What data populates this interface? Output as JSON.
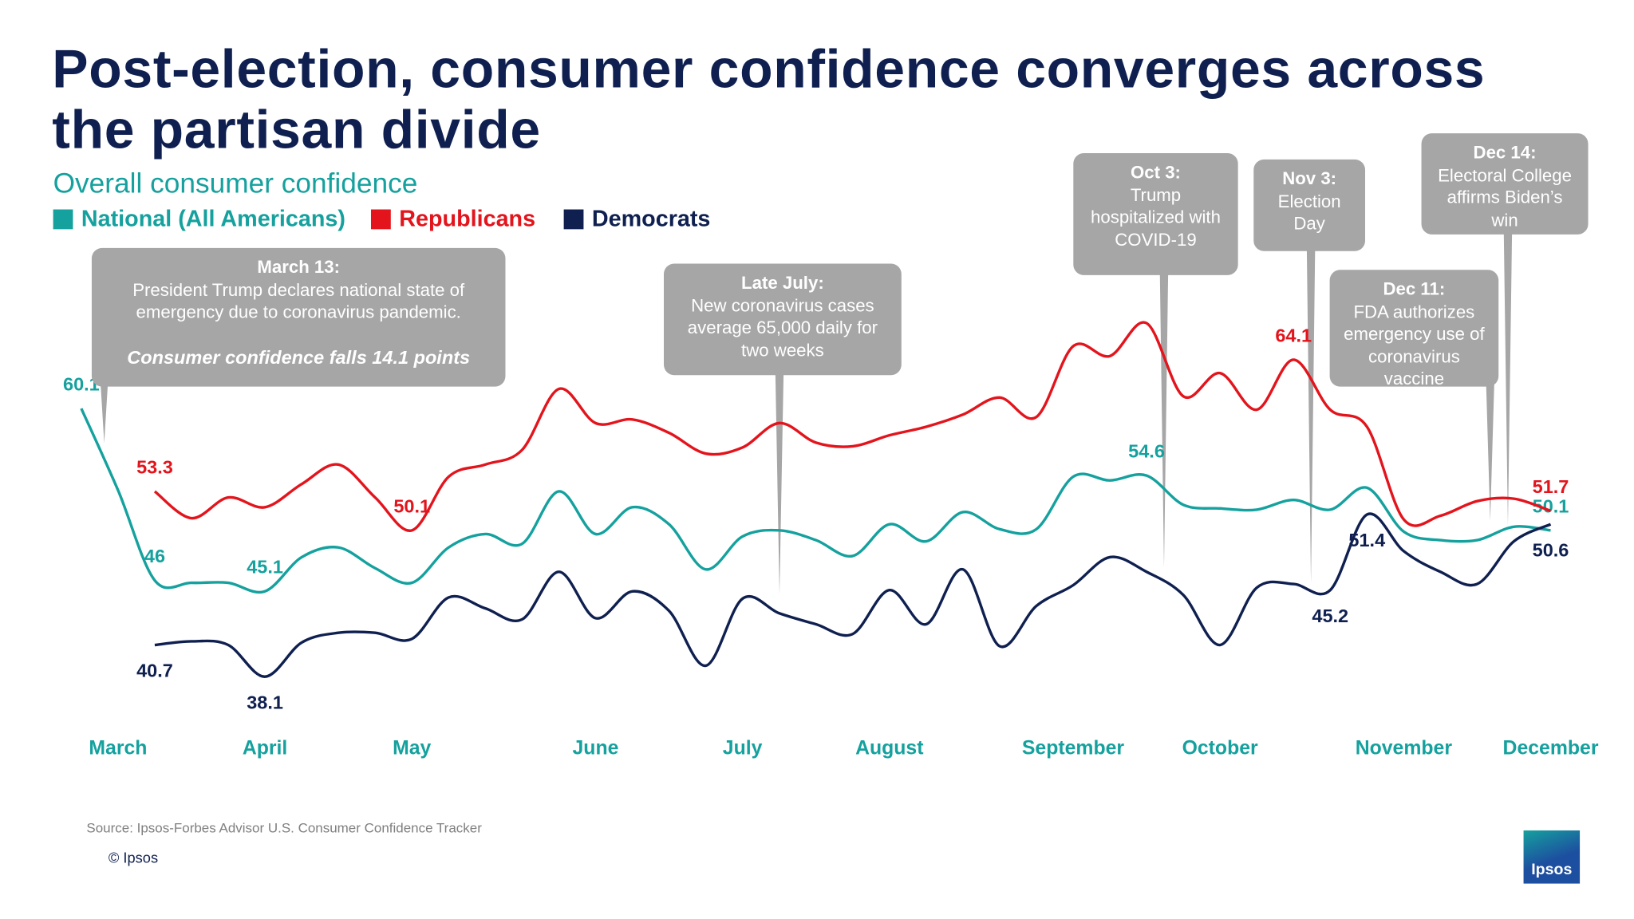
{
  "chart_data": {
    "type": "line",
    "title": "Post-election, consumer confidence converges across the partisan divide",
    "subtitle": "Overall consumer confidence",
    "categories": [
      null,
      "March",
      null,
      null,
      null,
      "April",
      null,
      null,
      null,
      "May",
      null,
      null,
      null,
      null,
      "June",
      null,
      null,
      null,
      "July",
      null,
      null,
      null,
      "August",
      null,
      null,
      null,
      null,
      "September",
      null,
      null,
      null,
      "October",
      null,
      null,
      null,
      null,
      "November",
      null,
      null,
      null,
      "December"
    ],
    "ylim": [
      32,
      70
    ],
    "series": [
      {
        "name": "National (All Americans)",
        "color": "#15a19e",
        "label_side": "above",
        "values": [
          60.1,
          53.4,
          46,
          45.8,
          45.8,
          45.1,
          47.9,
          48.7,
          47.0,
          45.8,
          48.7,
          49.8,
          49.0,
          53.3,
          49.8,
          52.0,
          50.6,
          46.9,
          49.6,
          50.1,
          49.3,
          48.0,
          50.6,
          49.2,
          51.6,
          50.2,
          50.2,
          54.5,
          54.2,
          54.6,
          52.2,
          51.9,
          51.8,
          52.6,
          51.8,
          53.6,
          50.0,
          49.3,
          49.3,
          50.4,
          50.1
        ],
        "value_labels": [
          "60.1",
          null,
          "46",
          null,
          null,
          "45.1",
          null,
          null,
          null,
          null,
          null,
          null,
          null,
          null,
          null,
          null,
          null,
          null,
          null,
          null,
          null,
          null,
          null,
          null,
          null,
          null,
          null,
          null,
          null,
          "54.6",
          null,
          null,
          null,
          null,
          null,
          null,
          null,
          null,
          null,
          null,
          "50.1"
        ]
      },
      {
        "name": "Republicans",
        "color": "#e3141c",
        "label_side": "above",
        "values": [
          null,
          null,
          53.3,
          51.1,
          52.8,
          52.0,
          53.9,
          55.5,
          52.8,
          50.1,
          54.5,
          55.5,
          56.7,
          61.7,
          58.9,
          59.2,
          58.1,
          56.4,
          56.9,
          58.9,
          57.3,
          57.0,
          57.9,
          58.6,
          59.6,
          61.0,
          59.4,
          65.2,
          64.4,
          67.1,
          61.1,
          63.0,
          60.0,
          64.1,
          60.0,
          58.6,
          51.0,
          51.3,
          52.5,
          52.7,
          51.7
        ],
        "value_labels": [
          null,
          null,
          "53.3",
          null,
          null,
          null,
          null,
          null,
          null,
          "50.1",
          null,
          null,
          null,
          null,
          null,
          null,
          null,
          null,
          null,
          null,
          null,
          null,
          null,
          null,
          null,
          null,
          null,
          null,
          null,
          null,
          null,
          null,
          null,
          "64.1",
          null,
          null,
          null,
          null,
          null,
          null,
          "51.7"
        ]
      },
      {
        "name": "Democrats",
        "color": "#0f2050",
        "label_side": "below",
        "values": [
          null,
          null,
          40.7,
          41.0,
          40.7,
          38.1,
          40.9,
          41.7,
          41.7,
          41.2,
          44.6,
          43.7,
          42.8,
          46.7,
          42.9,
          45.1,
          43.5,
          39.0,
          44.5,
          43.3,
          42.4,
          41.6,
          45.2,
          42.4,
          46.9,
          40.6,
          43.9,
          45.6,
          47.9,
          46.7,
          44.8,
          40.7,
          45.4,
          45.7,
          45.2,
          51.4,
          48.4,
          46.7,
          45.7,
          49.2,
          50.6
        ],
        "value_labels": [
          null,
          null,
          "40.7",
          null,
          null,
          "38.1",
          null,
          null,
          null,
          null,
          null,
          null,
          null,
          null,
          null,
          null,
          null,
          null,
          null,
          null,
          null,
          null,
          null,
          null,
          null,
          null,
          null,
          null,
          null,
          null,
          null,
          null,
          null,
          null,
          "45.2",
          "51.4",
          null,
          null,
          null,
          null,
          "50.6"
        ]
      }
    ],
    "annotations": [
      {
        "title": "March 13:",
        "text": "President Trump declares national state of emergency due to coronavirus pandemic.",
        "note": "Consumer confidence falls 14.1 points"
      },
      {
        "title": "Late July:",
        "text": "New coronavirus cases average 65,000 daily for two weeks"
      },
      {
        "title": "Oct 3:",
        "text": "Trump hospitalized with COVID-19"
      },
      {
        "title": "Nov 3:",
        "text": "Election Day"
      },
      {
        "title": "Dec 11:",
        "text": "FDA authorizes emergency use of coronavirus vaccine"
      },
      {
        "title": "Dec 14:",
        "text": "Electoral College affirms Biden’s win"
      }
    ],
    "source": "Source: Ipsos-Forbes Advisor U.S. Consumer Confidence Tracker",
    "copyright": "© Ipsos",
    "logo": "Ipsos"
  }
}
